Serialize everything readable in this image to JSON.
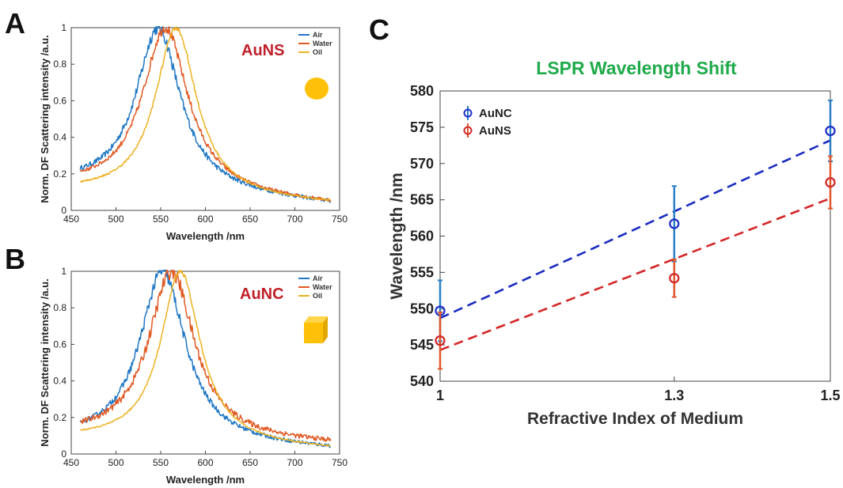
{
  "figure": {
    "panel_labels": [
      "A",
      "B",
      "C"
    ]
  },
  "colors": {
    "air": "#1f77c4",
    "water": "#e05a24",
    "oil": "#edb120",
    "aunc": "#1f33c8",
    "auns": "#d22a2a",
    "aunc_fit": "#1a2bc0",
    "auns_fit": "#d42626",
    "annotation": "#c0202a",
    "title_c": "#1faa4a",
    "particle": "#ffc107"
  },
  "chart_data": [
    {
      "id": "A",
      "type": "line",
      "annotation": "AuNS",
      "shape_icon": "sphere",
      "xlabel": "Wavelength /nm",
      "ylabel": "Norm. DF Scattering intensity /a.u.",
      "xlim": [
        450,
        750
      ],
      "ylim": [
        0,
        1
      ],
      "xticks": [
        "450",
        "500",
        "550",
        "600",
        "650",
        "700",
        "750"
      ],
      "yticks": [
        "0",
        "0.2",
        "0.4",
        "0.6",
        "0.8",
        "1"
      ],
      "legend_position": "top-right",
      "series": [
        {
          "name": "Air",
          "peak": 547,
          "width": 30,
          "base_start": 0.14,
          "base_end": 0.03,
          "noise": 0.025,
          "x": [
            460,
            490,
            510,
            530,
            547,
            560,
            580,
            600,
            630,
            660,
            700,
            740
          ],
          "y": [
            0.15,
            0.2,
            0.35,
            0.78,
            0.98,
            0.9,
            0.68,
            0.44,
            0.25,
            0.15,
            0.08,
            0.03
          ]
        },
        {
          "name": "Water",
          "peak": 555,
          "width": 31,
          "base_start": 0.13,
          "base_end": 0.03,
          "noise": 0.02,
          "x": [
            460,
            490,
            510,
            530,
            555,
            570,
            590,
            610,
            640,
            670,
            700,
            740
          ],
          "y": [
            0.13,
            0.16,
            0.27,
            0.6,
            0.98,
            0.88,
            0.6,
            0.38,
            0.2,
            0.13,
            0.08,
            0.03
          ]
        },
        {
          "name": "Oil",
          "peak": 567,
          "width": 28,
          "base_start": 0.1,
          "base_end": 0.03,
          "noise": 0.01,
          "x": [
            460,
            500,
            520,
            545,
            567,
            580,
            600,
            620,
            650,
            680,
            710,
            740
          ],
          "y": [
            0.1,
            0.12,
            0.2,
            0.55,
            0.98,
            0.88,
            0.55,
            0.33,
            0.18,
            0.1,
            0.06,
            0.03
          ]
        }
      ]
    },
    {
      "id": "B",
      "type": "line",
      "annotation": "AuNC",
      "shape_icon": "cube",
      "xlabel": "Wavelength /nm",
      "ylabel": "Norm. DF Scattering intensity /a.u.",
      "xlim": [
        450,
        750
      ],
      "ylim": [
        0,
        1
      ],
      "xticks": [
        "450",
        "500",
        "550",
        "600",
        "650",
        "700",
        "750"
      ],
      "yticks": [
        "0",
        "0.2",
        "0.4",
        "0.6",
        "0.8",
        "1"
      ],
      "legend_position": "top-right",
      "series": [
        {
          "name": "Air",
          "peak": 552,
          "width": 31,
          "base_start": 0.08,
          "base_end": 0.02,
          "noise": 0.025,
          "x": [
            460,
            500,
            520,
            540,
            552,
            570,
            590,
            610,
            640,
            670,
            700,
            740
          ],
          "y": [
            0.09,
            0.12,
            0.3,
            0.75,
            0.98,
            0.8,
            0.52,
            0.35,
            0.2,
            0.12,
            0.06,
            0.02
          ]
        },
        {
          "name": "Water",
          "peak": 562,
          "width": 31,
          "base_start": 0.1,
          "base_end": 0.05,
          "noise": 0.03,
          "x": [
            460,
            510,
            530,
            550,
            562,
            580,
            600,
            620,
            650,
            680,
            710,
            740
          ],
          "y": [
            0.1,
            0.12,
            0.32,
            0.8,
            0.98,
            0.85,
            0.55,
            0.35,
            0.23,
            0.15,
            0.1,
            0.06
          ]
        },
        {
          "name": "Oil",
          "peak": 572,
          "width": 27,
          "base_start": 0.08,
          "base_end": 0.02,
          "noise": 0.008,
          "x": [
            460,
            520,
            540,
            560,
            572,
            590,
            610,
            630,
            660,
            690,
            720,
            740
          ],
          "y": [
            0.08,
            0.1,
            0.3,
            0.8,
            0.98,
            0.78,
            0.45,
            0.27,
            0.15,
            0.08,
            0.04,
            0.02
          ]
        }
      ]
    },
    {
      "id": "C",
      "type": "scatter",
      "title": "LSPR Wavelength Shift",
      "xlabel": "Refractive Index of Medium",
      "ylabel": "Wavelength /nm",
      "xlim": [
        1,
        1.5
      ],
      "ylim": [
        540,
        580
      ],
      "xticks": [
        "1",
        "1.3",
        "1.5"
      ],
      "yticks": [
        "540",
        "545",
        "550",
        "555",
        "560",
        "565",
        "570",
        "575",
        "580"
      ],
      "legend_position": "top-left",
      "series": [
        {
          "name": "AuNC",
          "x": [
            1,
            1.3,
            1.5
          ],
          "y": [
            549.7,
            561.7,
            574.5
          ],
          "err": [
            4.2,
            5.2,
            4.2
          ],
          "fit": [
            548.7,
            573.2
          ]
        },
        {
          "name": "AuNS",
          "x": [
            1,
            1.3,
            1.5
          ],
          "y": [
            545.6,
            554.2,
            567.4
          ],
          "err": [
            3.9,
            2.6,
            3.6
          ],
          "fit": [
            544.3,
            565.2
          ]
        }
      ]
    }
  ]
}
